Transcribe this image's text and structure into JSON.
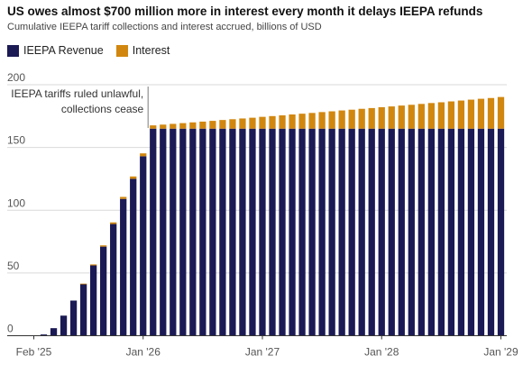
{
  "chart_data": {
    "type": "bar",
    "stacked": true,
    "title": "US owes almost $700 million more in interest every month it delays IEEPA refunds",
    "subtitle": "Cumulative IEEPA tariff collections and interest accrued, billions of USD",
    "colors": {
      "IEEPA Revenue": "#1b1a55",
      "Interest": "#d1870f"
    },
    "legend": {
      "placement": "top-left",
      "entries": [
        "IEEPA Revenue",
        "Interest"
      ]
    },
    "grid": true,
    "ylim": [
      0,
      200
    ],
    "yticks": [
      0,
      50,
      100,
      150,
      200
    ],
    "x_tick_labels": [
      {
        "label": "Feb '25",
        "index": 0
      },
      {
        "label": "Jan '26",
        "index": 11
      },
      {
        "label": "Jan '27",
        "index": 23
      },
      {
        "label": "Jan '28",
        "index": 35
      },
      {
        "label": "Jan '29",
        "index": 47
      }
    ],
    "annotation": {
      "lines": [
        "IEEPA tariffs ruled unlawful,",
        "collections cease"
      ],
      "at_index": 11.5
    },
    "series": [
      {
        "name": "IEEPA Revenue",
        "values": [
          0,
          1,
          6,
          16,
          28,
          41,
          56,
          71,
          89,
          109,
          125,
          143,
          165,
          165,
          165,
          165,
          165,
          165,
          165,
          165,
          165,
          165,
          165,
          165,
          165,
          165,
          165,
          165,
          165,
          165,
          165,
          165,
          165,
          165,
          165,
          165,
          165,
          165,
          165,
          165,
          165,
          165,
          165,
          165,
          165,
          165,
          165,
          165
        ]
      },
      {
        "name": "Interest",
        "values": [
          0,
          0,
          0,
          0,
          0,
          0.5,
          0.8,
          1,
          1.3,
          1.6,
          1.9,
          2.3,
          2.6,
          3.2,
          3.8,
          4.4,
          5,
          5.6,
          6.2,
          6.9,
          7.5,
          8.1,
          8.7,
          9.4,
          10,
          10.6,
          11.3,
          11.9,
          12.5,
          13.2,
          13.8,
          14.5,
          15.1,
          15.8,
          16.4,
          17.1,
          17.7,
          18.4,
          19,
          19.7,
          20.4,
          21,
          21.7,
          22.4,
          23.1,
          23.8,
          24.4,
          25.2
        ]
      }
    ]
  }
}
